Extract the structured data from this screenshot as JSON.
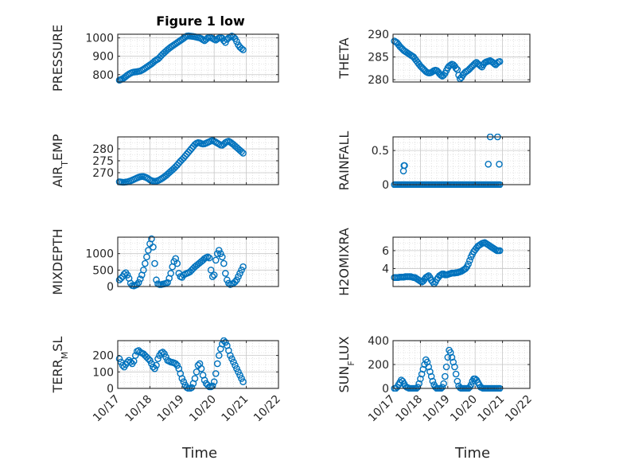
{
  "figure": {
    "title": "Figure 1 low",
    "xlabel": "Time",
    "marker_color": "#0072BD",
    "x_ticks": [
      "10/17",
      "10/18",
      "10/19",
      "10/20",
      "10/21",
      "10/22"
    ]
  },
  "chart_data": [
    {
      "type": "scatter",
      "title": "Figure 1 low",
      "ylabel": "PRESSURE",
      "ylim": [
        760,
        1020
      ],
      "yticks": [
        800,
        900,
        1000
      ],
      "grid": true,
      "x": [
        0.05,
        0.08,
        0.12,
        0.16,
        0.2,
        0.25,
        0.3,
        0.35,
        0.4,
        0.45,
        0.5,
        0.55,
        0.6,
        0.65,
        0.7,
        0.75,
        0.8,
        0.85,
        0.9,
        0.95,
        1.0,
        1.05,
        1.1,
        1.15,
        1.2,
        1.25,
        1.3,
        1.35,
        1.4,
        1.45,
        1.5,
        1.55,
        1.6,
        1.65,
        1.7,
        1.75,
        1.8,
        1.85,
        1.9,
        1.95,
        2.0,
        2.05,
        2.1,
        2.15,
        2.2,
        2.25,
        2.3,
        2.35,
        2.4,
        2.45,
        2.5,
        2.55,
        2.6,
        2.65,
        2.7,
        2.75,
        2.8,
        2.85,
        2.9,
        2.95,
        3.0,
        3.05,
        3.1,
        3.15,
        3.2,
        3.25,
        3.3,
        3.35,
        3.4,
        3.45,
        3.5,
        3.55,
        3.6,
        3.65,
        3.7,
        3.75,
        3.8,
        3.85,
        3.9
      ],
      "y": [
        770,
        772,
        775,
        778,
        783,
        790,
        797,
        803,
        808,
        812,
        814,
        815,
        816,
        818,
        820,
        824,
        829,
        835,
        841,
        847,
        853,
        859,
        866,
        874,
        880,
        885,
        893,
        903,
        912,
        920,
        928,
        936,
        943,
        950,
        956,
        962,
        968,
        974,
        980,
        986,
        992,
        998,
        1005,
        1010,
        1011,
        1010,
        1009,
        1008,
        1006,
        1004,
        1002,
        1000,
        996,
        990,
        985,
        992,
        1000,
        1003,
        1001,
        997,
        992,
        988,
        994,
        1000,
        1002,
        998,
        985,
        975,
        992,
        1000,
        1005,
        1010,
        1006,
        996,
        980,
        962,
        950,
        942,
        935
      ],
      "series": [
        {
          "name": "",
          "values": []
        }
      ]
    },
    {
      "type": "scatter",
      "ylabel": "THETA",
      "ylim": [
        279.5,
        290
      ],
      "yticks": [
        280,
        285,
        290
      ],
      "grid": true,
      "x": [
        0.05,
        0.1,
        0.15,
        0.2,
        0.25,
        0.3,
        0.35,
        0.4,
        0.45,
        0.5,
        0.55,
        0.6,
        0.65,
        0.7,
        0.75,
        0.8,
        0.85,
        0.9,
        0.95,
        1.0,
        1.05,
        1.1,
        1.15,
        1.2,
        1.25,
        1.3,
        1.35,
        1.4,
        1.45,
        1.5,
        1.55,
        1.6,
        1.65,
        1.7,
        1.75,
        1.8,
        1.85,
        1.9,
        1.95,
        2.0,
        2.05,
        2.1,
        2.15,
        2.2,
        2.25,
        2.3,
        2.35,
        2.4,
        2.45,
        2.5,
        2.55,
        2.6,
        2.65,
        2.7,
        2.75,
        2.8,
        2.85,
        2.9,
        2.95,
        3.0,
        3.05,
        3.1,
        3.15,
        3.2,
        3.25,
        3.3,
        3.35,
        3.4,
        3.45,
        3.5,
        3.55,
        3.6,
        3.65,
        3.7,
        3.75,
        3.8,
        3.85,
        3.9
      ],
      "y": [
        288.5,
        288.3,
        288.1,
        287.7,
        287.3,
        287.0,
        286.7,
        286.4,
        286.2,
        286.0,
        285.8,
        285.6,
        285.4,
        285.2,
        285.0,
        284.6,
        284.2,
        283.8,
        283.4,
        283.0,
        282.7,
        282.4,
        282.1,
        281.8,
        281.6,
        281.5,
        281.5,
        281.6,
        281.8,
        282.0,
        282.1,
        282.0,
        281.7,
        281.3,
        281.0,
        280.8,
        281.0,
        281.4,
        282.0,
        282.6,
        283.0,
        283.2,
        283.4,
        283.3,
        283.0,
        282.5,
        282.2,
        281.0,
        280.2,
        280.5,
        281.0,
        281.4,
        281.7,
        281.9,
        282.1,
        282.4,
        282.7,
        283.0,
        283.3,
        283.6,
        283.8,
        283.5,
        283.3,
        283.0,
        282.8,
        283.3,
        283.7,
        283.9,
        284.0,
        284.1,
        284.2,
        284.0,
        283.8,
        283.5,
        283.3,
        283.6,
        283.9,
        284.0
      ]
    },
    {
      "type": "scatter",
      "ylabel": "AIR_TEMP",
      "ylim": [
        265,
        285
      ],
      "yticks": [
        270,
        275,
        280
      ],
      "grid": true,
      "x": [
        0.05,
        0.1,
        0.15,
        0.2,
        0.25,
        0.3,
        0.35,
        0.4,
        0.45,
        0.5,
        0.55,
        0.6,
        0.65,
        0.7,
        0.75,
        0.8,
        0.85,
        0.9,
        0.95,
        1.0,
        1.05,
        1.1,
        1.15,
        1.2,
        1.25,
        1.3,
        1.35,
        1.4,
        1.45,
        1.5,
        1.55,
        1.6,
        1.65,
        1.7,
        1.75,
        1.8,
        1.85,
        1.9,
        1.95,
        2.0,
        2.05,
        2.1,
        2.15,
        2.2,
        2.25,
        2.3,
        2.35,
        2.4,
        2.45,
        2.5,
        2.55,
        2.6,
        2.65,
        2.7,
        2.75,
        2.8,
        2.85,
        2.9,
        2.95,
        3.0,
        3.05,
        3.1,
        3.15,
        3.2,
        3.25,
        3.3,
        3.35,
        3.4,
        3.45,
        3.5,
        3.55,
        3.6,
        3.65,
        3.7,
        3.75,
        3.8,
        3.85,
        3.9
      ],
      "y": [
        266.2,
        266.1,
        266.0,
        266.0,
        266.1,
        266.2,
        266.4,
        266.6,
        266.9,
        267.2,
        267.5,
        267.8,
        268.1,
        268.3,
        268.4,
        268.4,
        268.2,
        267.9,
        267.5,
        267.0,
        266.7,
        266.5,
        266.4,
        266.5,
        266.7,
        267.0,
        267.4,
        267.8,
        268.3,
        268.8,
        269.4,
        270.0,
        270.6,
        271.2,
        271.8,
        272.5,
        273.2,
        274.0,
        274.8,
        275.5,
        276.2,
        277.0,
        277.8,
        278.6,
        279.4,
        280.2,
        281.0,
        281.8,
        282.3,
        282.6,
        282.5,
        282.2,
        282.0,
        282.1,
        282.4,
        282.7,
        283.0,
        283.3,
        283.5,
        283.2,
        282.8,
        282.4,
        282.0,
        281.6,
        281.5,
        282.0,
        282.6,
        283.0,
        283.2,
        282.8,
        282.3,
        281.8,
        281.2,
        280.6,
        280.0,
        279.4,
        278.8,
        278.2
      ]
    },
    {
      "type": "scatter",
      "ylabel": "RAINFALL",
      "ylim": [
        0,
        0.7
      ],
      "yticks": [
        0,
        0.5
      ],
      "grid": true,
      "x": [
        0.05,
        0.1,
        0.15,
        0.2,
        0.25,
        0.3,
        0.35,
        0.4,
        0.45,
        0.5,
        0.55,
        0.6,
        0.65,
        0.7,
        0.75,
        0.8,
        0.85,
        0.9,
        0.95,
        1.0,
        1.05,
        1.1,
        1.15,
        1.2,
        1.25,
        1.3,
        1.35,
        1.4,
        1.45,
        1.5,
        1.55,
        1.6,
        1.65,
        1.7,
        1.75,
        1.8,
        1.85,
        1.9,
        1.95,
        2.0,
        2.05,
        2.1,
        2.15,
        2.2,
        2.25,
        2.3,
        2.35,
        2.4,
        2.45,
        2.5,
        2.55,
        2.6,
        2.65,
        2.7,
        2.75,
        2.8,
        2.85,
        2.9,
        2.95,
        3.0,
        3.05,
        3.1,
        3.15,
        3.2,
        3.25,
        3.3,
        3.35,
        3.4,
        3.45,
        3.5,
        3.55,
        3.6,
        3.65,
        3.7,
        3.75,
        3.8,
        3.85,
        3.9,
        0.38,
        0.42,
        0.4,
        3.48,
        3.55,
        3.82,
        3.88
      ],
      "y": [
        0,
        0,
        0,
        0,
        0,
        0,
        0,
        0,
        0,
        0,
        0,
        0,
        0,
        0,
        0,
        0,
        0,
        0,
        0,
        0,
        0,
        0,
        0,
        0,
        0,
        0,
        0,
        0,
        0,
        0,
        0,
        0,
        0,
        0,
        0,
        0,
        0,
        0,
        0,
        0,
        0,
        0,
        0,
        0,
        0,
        0,
        0,
        0,
        0,
        0,
        0,
        0,
        0,
        0,
        0,
        0,
        0,
        0,
        0,
        0,
        0,
        0,
        0,
        0,
        0,
        0,
        0,
        0,
        0,
        0,
        0,
        0,
        0,
        0,
        0,
        0,
        0,
        0,
        0.2,
        0.28,
        0.28,
        0.3,
        0.7,
        0.7,
        0.3
      ]
    },
    {
      "type": "scatter",
      "ylabel": "MIXDEPTH",
      "ylim": [
        0,
        1500
      ],
      "yticks": [
        0,
        500,
        1000
      ],
      "grid": true,
      "x": [
        0.05,
        0.1,
        0.15,
        0.2,
        0.25,
        0.3,
        0.35,
        0.4,
        0.45,
        0.5,
        0.55,
        0.6,
        0.65,
        0.7,
        0.75,
        0.8,
        0.85,
        0.9,
        0.95,
        1.0,
        1.05,
        1.1,
        1.15,
        1.2,
        1.25,
        1.3,
        1.35,
        1.4,
        1.45,
        1.5,
        1.55,
        1.6,
        1.65,
        1.7,
        1.75,
        1.8,
        1.85,
        1.9,
        1.95,
        2.0,
        2.05,
        2.1,
        2.15,
        2.2,
        2.25,
        2.3,
        2.35,
        2.4,
        2.45,
        2.5,
        2.55,
        2.6,
        2.65,
        2.7,
        2.75,
        2.8,
        2.85,
        2.9,
        2.95,
        3.0,
        3.05,
        3.1,
        3.15,
        3.2,
        3.25,
        3.3,
        3.35,
        3.4,
        3.45,
        3.5,
        3.55,
        3.6,
        3.65,
        3.7,
        3.75,
        3.8,
        3.85,
        3.9
      ],
      "y": [
        200,
        250,
        300,
        380,
        420,
        350,
        250,
        100,
        30,
        20,
        40,
        60,
        120,
        230,
        350,
        500,
        700,
        900,
        1100,
        1300,
        1450,
        1200,
        700,
        200,
        80,
        60,
        60,
        70,
        80,
        100,
        120,
        250,
        400,
        600,
        760,
        850,
        700,
        400,
        300,
        280,
        350,
        380,
        400,
        420,
        450,
        500,
        550,
        600,
        640,
        680,
        720,
        760,
        800,
        850,
        880,
        900,
        870,
        500,
        300,
        350,
        800,
        1000,
        1100,
        1000,
        900,
        700,
        400,
        200,
        100,
        60,
        80,
        100,
        140,
        200,
        300,
        400,
        500,
        600
      ]
    },
    {
      "type": "scatter",
      "ylabel": "H2OMIXRA",
      "ylim": [
        2,
        7.5
      ],
      "yticks": [
        4,
        6
      ],
      "grid": true,
      "x": [
        0.05,
        0.1,
        0.15,
        0.2,
        0.25,
        0.3,
        0.35,
        0.4,
        0.45,
        0.5,
        0.55,
        0.6,
        0.65,
        0.7,
        0.75,
        0.8,
        0.85,
        0.9,
        0.95,
        1.0,
        1.05,
        1.1,
        1.15,
        1.2,
        1.25,
        1.3,
        1.35,
        1.4,
        1.45,
        1.5,
        1.55,
        1.6,
        1.65,
        1.7,
        1.75,
        1.8,
        1.85,
        1.9,
        1.95,
        2.0,
        2.05,
        2.1,
        2.15,
        2.2,
        2.25,
        2.3,
        2.35,
        2.4,
        2.45,
        2.5,
        2.55,
        2.6,
        2.65,
        2.7,
        2.75,
        2.8,
        2.85,
        2.9,
        2.95,
        3.0,
        3.05,
        3.1,
        3.15,
        3.2,
        3.25,
        3.3,
        3.35,
        3.4,
        3.45,
        3.5,
        3.55,
        3.6,
        3.65,
        3.7,
        3.75,
        3.8,
        3.85,
        3.9
      ],
      "y": [
        3.0,
        3.0,
        3.0,
        3.0,
        3.05,
        3.05,
        3.05,
        3.05,
        3.1,
        3.1,
        3.1,
        3.1,
        3.1,
        3.05,
        3.0,
        3.0,
        2.9,
        2.8,
        2.7,
        2.6,
        2.5,
        2.6,
        2.8,
        3.0,
        3.1,
        3.2,
        3.0,
        2.7,
        2.5,
        2.3,
        2.5,
        2.8,
        3.0,
        3.2,
        3.3,
        3.4,
        3.4,
        3.3,
        3.3,
        3.35,
        3.4,
        3.45,
        3.5,
        3.5,
        3.5,
        3.55,
        3.55,
        3.6,
        3.65,
        3.7,
        3.8,
        3.9,
        4.0,
        4.2,
        4.5,
        4.9,
        5.3,
        5.6,
        5.9,
        6.1,
        6.3,
        6.5,
        6.6,
        6.7,
        6.8,
        6.85,
        6.9,
        6.8,
        6.7,
        6.6,
        6.5,
        6.4,
        6.3,
        6.2,
        6.1,
        6.0,
        6.0,
        6.0
      ]
    },
    {
      "type": "scatter",
      "ylabel": "TERR_MSL",
      "ylim": [
        0,
        290
      ],
      "yticks": [
        0,
        100,
        200
      ],
      "grid": true,
      "x": [
        0.05,
        0.1,
        0.15,
        0.2,
        0.25,
        0.3,
        0.35,
        0.4,
        0.45,
        0.5,
        0.55,
        0.6,
        0.65,
        0.7,
        0.75,
        0.8,
        0.85,
        0.9,
        0.95,
        1.0,
        1.05,
        1.1,
        1.15,
        1.2,
        1.25,
        1.3,
        1.35,
        1.4,
        1.45,
        1.5,
        1.55,
        1.6,
        1.65,
        1.7,
        1.75,
        1.8,
        1.85,
        1.9,
        1.95,
        2.0,
        2.05,
        2.1,
        2.15,
        2.2,
        2.25,
        2.3,
        2.35,
        2.4,
        2.45,
        2.5,
        2.55,
        2.6,
        2.65,
        2.7,
        2.75,
        2.8,
        2.85,
        2.9,
        2.95,
        3.0,
        3.05,
        3.1,
        3.15,
        3.2,
        3.25,
        3.3,
        3.35,
        3.4,
        3.45,
        3.5,
        3.55,
        3.6,
        3.65,
        3.7,
        3.75,
        3.8,
        3.85,
        3.9
      ],
      "y": [
        180,
        160,
        140,
        130,
        145,
        160,
        170,
        160,
        150,
        165,
        200,
        225,
        230,
        220,
        215,
        210,
        200,
        190,
        180,
        170,
        150,
        130,
        120,
        140,
        180,
        200,
        215,
        220,
        210,
        190,
        170,
        165,
        160,
        158,
        155,
        150,
        140,
        120,
        90,
        60,
        40,
        20,
        5,
        0,
        0,
        5,
        30,
        60,
        100,
        140,
        150,
        120,
        80,
        50,
        30,
        20,
        10,
        10,
        15,
        40,
        90,
        150,
        200,
        240,
        270,
        290,
        280,
        260,
        230,
        200,
        180,
        160,
        140,
        120,
        100,
        80,
        60,
        40
      ]
    },
    {
      "type": "scatter",
      "ylabel": "SUN_FLUX",
      "ylim": [
        0,
        400
      ],
      "yticks": [
        0,
        200,
        400
      ],
      "grid": true,
      "x": [
        0.05,
        0.1,
        0.15,
        0.2,
        0.25,
        0.3,
        0.35,
        0.4,
        0.45,
        0.5,
        0.55,
        0.6,
        0.65,
        0.7,
        0.75,
        0.8,
        0.85,
        0.9,
        0.95,
        1.0,
        1.05,
        1.1,
        1.15,
        1.2,
        1.25,
        1.3,
        1.35,
        1.4,
        1.45,
        1.5,
        1.55,
        1.6,
        1.65,
        1.7,
        1.75,
        1.8,
        1.85,
        1.9,
        1.95,
        2.0,
        2.05,
        2.1,
        2.15,
        2.2,
        2.25,
        2.3,
        2.35,
        2.4,
        2.45,
        2.5,
        2.55,
        2.6,
        2.65,
        2.7,
        2.75,
        2.8,
        2.85,
        2.9,
        2.95,
        3.0,
        3.05,
        3.1,
        3.15,
        3.2,
        3.25,
        3.3,
        3.35,
        3.4,
        3.45,
        3.5,
        3.55,
        3.6,
        3.65,
        3.7,
        3.75,
        3.8,
        3.85,
        3.9
      ],
      "y": [
        0,
        0,
        10,
        30,
        50,
        70,
        60,
        40,
        20,
        10,
        5,
        0,
        0,
        0,
        0,
        0,
        0,
        10,
        40,
        80,
        120,
        160,
        200,
        240,
        220,
        180,
        140,
        100,
        60,
        30,
        10,
        0,
        0,
        0,
        0,
        10,
        40,
        100,
        180,
        260,
        320,
        300,
        260,
        220,
        180,
        120,
        60,
        20,
        5,
        0,
        0,
        0,
        0,
        0,
        0,
        10,
        30,
        60,
        80,
        80,
        70,
        50,
        30,
        10,
        5,
        0,
        0,
        0,
        0,
        0,
        0,
        0,
        0,
        0,
        0,
        0,
        0,
        0
      ]
    }
  ]
}
